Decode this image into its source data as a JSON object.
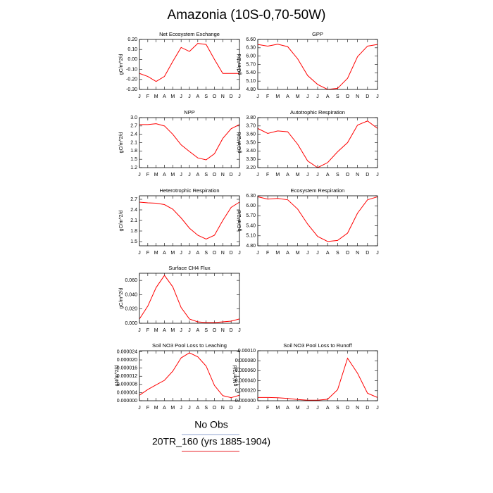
{
  "title": "Amazonia (10S-0,70-50W)",
  "legend": [
    {
      "label": "No Obs",
      "color": "#8fa3cf"
    },
    {
      "label": "20TR_160 (yrs 1885-1904)",
      "color": "#e8252b"
    }
  ],
  "chart_data": [
    {
      "type": "line",
      "title": "Net Ecosystem Exchange",
      "ylabel": "gC/m^2/d",
      "categories": [
        "J",
        "F",
        "M",
        "A",
        "M",
        "J",
        "J",
        "A",
        "S",
        "O",
        "N",
        "D",
        "J"
      ],
      "series": [
        {
          "color": "#ff0000",
          "values": [
            -0.14,
            -0.17,
            -0.22,
            -0.17,
            -0.02,
            0.12,
            0.08,
            0.16,
            0.15,
            0.0,
            -0.14,
            -0.14,
            -0.14
          ]
        }
      ],
      "ylim": [
        -0.3,
        0.2
      ],
      "yticks": [
        {
          "value": -0.3,
          "label": "-0.30"
        },
        {
          "value": -0.2,
          "label": "-0.20"
        },
        {
          "value": -0.1,
          "label": "-0.10"
        },
        {
          "value": 0,
          "label": "0.00"
        },
        {
          "value": 0.1,
          "label": "0.10"
        },
        {
          "value": 0.2,
          "label": "0.20"
        }
      ]
    },
    {
      "type": "line",
      "title": "GPP",
      "ylabel": "gC/m^2/d",
      "categories": [
        "J",
        "F",
        "M",
        "A",
        "M",
        "J",
        "J",
        "A",
        "S",
        "O",
        "N",
        "D",
        "J"
      ],
      "series": [
        {
          "color": "#ff0000",
          "values": [
            6.42,
            6.36,
            6.43,
            6.34,
            5.9,
            5.3,
            4.98,
            4.8,
            4.84,
            5.2,
            5.98,
            6.36,
            6.42
          ]
        }
      ],
      "ylim": [
        4.8,
        6.6
      ],
      "yticks": [
        {
          "value": 4.8,
          "label": "4.80"
        },
        {
          "value": 5.1,
          "label": "5.10"
        },
        {
          "value": 5.4,
          "label": "5.40"
        },
        {
          "value": 5.7,
          "label": "5.70"
        },
        {
          "value": 6.0,
          "label": "6.00"
        },
        {
          "value": 6.3,
          "label": "6.30"
        },
        {
          "value": 6.6,
          "label": "6.60"
        }
      ]
    },
    {
      "type": "line",
      "title": "NPP",
      "ylabel": "gC/m^2/d",
      "categories": [
        "J",
        "F",
        "M",
        "A",
        "M",
        "J",
        "J",
        "A",
        "S",
        "O",
        "N",
        "D",
        "J"
      ],
      "series": [
        {
          "color": "#ff0000",
          "values": [
            2.75,
            2.75,
            2.78,
            2.7,
            2.4,
            2.02,
            1.78,
            1.55,
            1.48,
            1.7,
            2.25,
            2.6,
            2.75
          ]
        }
      ],
      "ylim": [
        1.2,
        3.0
      ],
      "yticks": [
        1.2,
        1.5,
        1.8,
        2.1,
        2.4,
        2.7,
        {
          "value": 3,
          "label": "3.0"
        }
      ]
    },
    {
      "type": "line",
      "title": "Autotrophic Respiration",
      "ylabel": "gC/m^2/d",
      "categories": [
        "J",
        "F",
        "M",
        "A",
        "M",
        "J",
        "J",
        "A",
        "S",
        "O",
        "N",
        "D",
        "J"
      ],
      "series": [
        {
          "color": "#ff0000",
          "values": [
            3.67,
            3.61,
            3.64,
            3.63,
            3.48,
            3.28,
            3.2,
            3.26,
            3.39,
            3.5,
            3.71,
            3.76,
            3.67
          ]
        }
      ],
      "ylim": [
        3.2,
        3.8
      ],
      "yticks": [
        {
          "value": 3.2,
          "label": "3.20"
        },
        {
          "value": 3.3,
          "label": "3.30"
        },
        {
          "value": 3.4,
          "label": "3.40"
        },
        {
          "value": 3.5,
          "label": "3.50"
        },
        {
          "value": 3.6,
          "label": "3.60"
        },
        {
          "value": 3.7,
          "label": "3.70"
        },
        {
          "value": 3.8,
          "label": "3.80"
        }
      ]
    },
    {
      "type": "line",
      "title": "Heterotrophic Respiration",
      "ylabel": "gC/m^2/d",
      "categories": [
        "J",
        "F",
        "M",
        "A",
        "M",
        "J",
        "J",
        "A",
        "S",
        "O",
        "N",
        "D",
        "J"
      ],
      "series": [
        {
          "color": "#ff0000",
          "values": [
            2.62,
            2.6,
            2.59,
            2.55,
            2.42,
            2.17,
            1.88,
            1.68,
            1.57,
            1.68,
            2.1,
            2.47,
            2.62
          ]
        }
      ],
      "ylim": [
        1.38,
        2.8
      ],
      "yticks": [
        1.5,
        1.8,
        2.1,
        2.4,
        2.7
      ]
    },
    {
      "type": "line",
      "title": "Ecosystem Respiration",
      "ylabel": "gC/m^2/d",
      "categories": [
        "J",
        "F",
        "M",
        "A",
        "M",
        "J",
        "J",
        "A",
        "S",
        "O",
        "N",
        "D",
        "J"
      ],
      "series": [
        {
          "color": "#ff0000",
          "values": [
            6.27,
            6.2,
            6.22,
            6.18,
            5.9,
            5.45,
            5.08,
            4.93,
            4.96,
            5.18,
            5.78,
            6.18,
            6.27
          ]
        }
      ],
      "ylim": [
        4.8,
        6.3
      ],
      "yticks": [
        {
          "value": 4.8,
          "label": "4.80"
        },
        {
          "value": 5.1,
          "label": "5.10"
        },
        {
          "value": 5.4,
          "label": "5.40"
        },
        {
          "value": 5.7,
          "label": "5.70"
        },
        {
          "value": 6.0,
          "label": "6.00"
        },
        {
          "value": 6.3,
          "label": "6.30"
        }
      ]
    },
    {
      "type": "line",
      "title": "Surface CH4 Flux",
      "ylabel": "gC/m^2/d",
      "categories": [
        "J",
        "F",
        "M",
        "A",
        "M",
        "J",
        "J",
        "A",
        "S",
        "O",
        "N",
        "D",
        "J"
      ],
      "series": [
        {
          "color": "#ff0000",
          "values": [
            0.006,
            0.024,
            0.05,
            0.067,
            0.051,
            0.022,
            0.006,
            0.002,
            0.001,
            0.001,
            0.002,
            0.003,
            0.006
          ]
        }
      ],
      "ylim": [
        0,
        0.07
      ],
      "yticks": [
        {
          "value": 0,
          "label": "0.000"
        },
        {
          "value": 0.02,
          "label": "0.020"
        },
        {
          "value": 0.04,
          "label": "0.040"
        },
        {
          "value": 0.06,
          "label": "0.060"
        }
      ]
    },
    {
      "type": "line",
      "title": "Soil NO3 Pool Loss to Leaching",
      "ylabel": "gN/m^2/d",
      "categories": [
        "J",
        "F",
        "M",
        "A",
        "M",
        "J",
        "J",
        "A",
        "S",
        "O",
        "N",
        "D",
        "J"
      ],
      "series": [
        {
          "color": "#ff0000",
          "values": [
            2.7e-06,
            5.5e-06,
            7.8e-06,
            1e-05,
            1.45e-05,
            2.1e-05,
            2.35e-05,
            2.15e-05,
            1.7e-05,
            7.5e-06,
            2.5e-06,
            1.5e-06,
            2.7e-06
          ]
        }
      ],
      "ylim": [
        0,
        2.45e-05
      ],
      "yticks": [
        {
          "value": 0,
          "label": "0.000000"
        },
        {
          "value": 4e-06,
          "label": "0.000004"
        },
        {
          "value": 8e-06,
          "label": "0.000008"
        },
        {
          "value": 1.2e-05,
          "label": "0.000012"
        },
        {
          "value": 1.6e-05,
          "label": "0.000016"
        },
        {
          "value": 2e-05,
          "label": "0.000020"
        },
        {
          "value": 2.4e-05,
          "label": "0.000024"
        }
      ]
    },
    {
      "type": "line",
      "title": "Soil NO3 Pool Loss to Runoff",
      "ylabel": "gN/m^2/d",
      "categories": [
        "J",
        "F",
        "M",
        "A",
        "M",
        "J",
        "J",
        "A",
        "S",
        "O",
        "N",
        "D",
        "J"
      ],
      "series": [
        {
          "color": "#ff0000",
          "values": [
            6.5e-06,
            6.5e-06,
            6e-06,
            4.5e-06,
            2.5e-06,
            1e-06,
            1e-06,
            3e-06,
            2.2e-05,
            8.5e-05,
            5.5e-05,
            1.5e-05,
            6.5e-06
          ]
        }
      ],
      "ylim": [
        0,
        0.0001
      ],
      "yticks": [
        {
          "value": 0,
          "label": "0.000000"
        },
        {
          "value": 2e-05,
          "label": "0.000020"
        },
        {
          "value": 4e-05,
          "label": "0.000040"
        },
        {
          "value": 6e-05,
          "label": "0.000060"
        },
        {
          "value": 8e-05,
          "label": "0.000080"
        },
        {
          "value": 0.0001,
          "label": "0.00010"
        }
      ]
    }
  ]
}
